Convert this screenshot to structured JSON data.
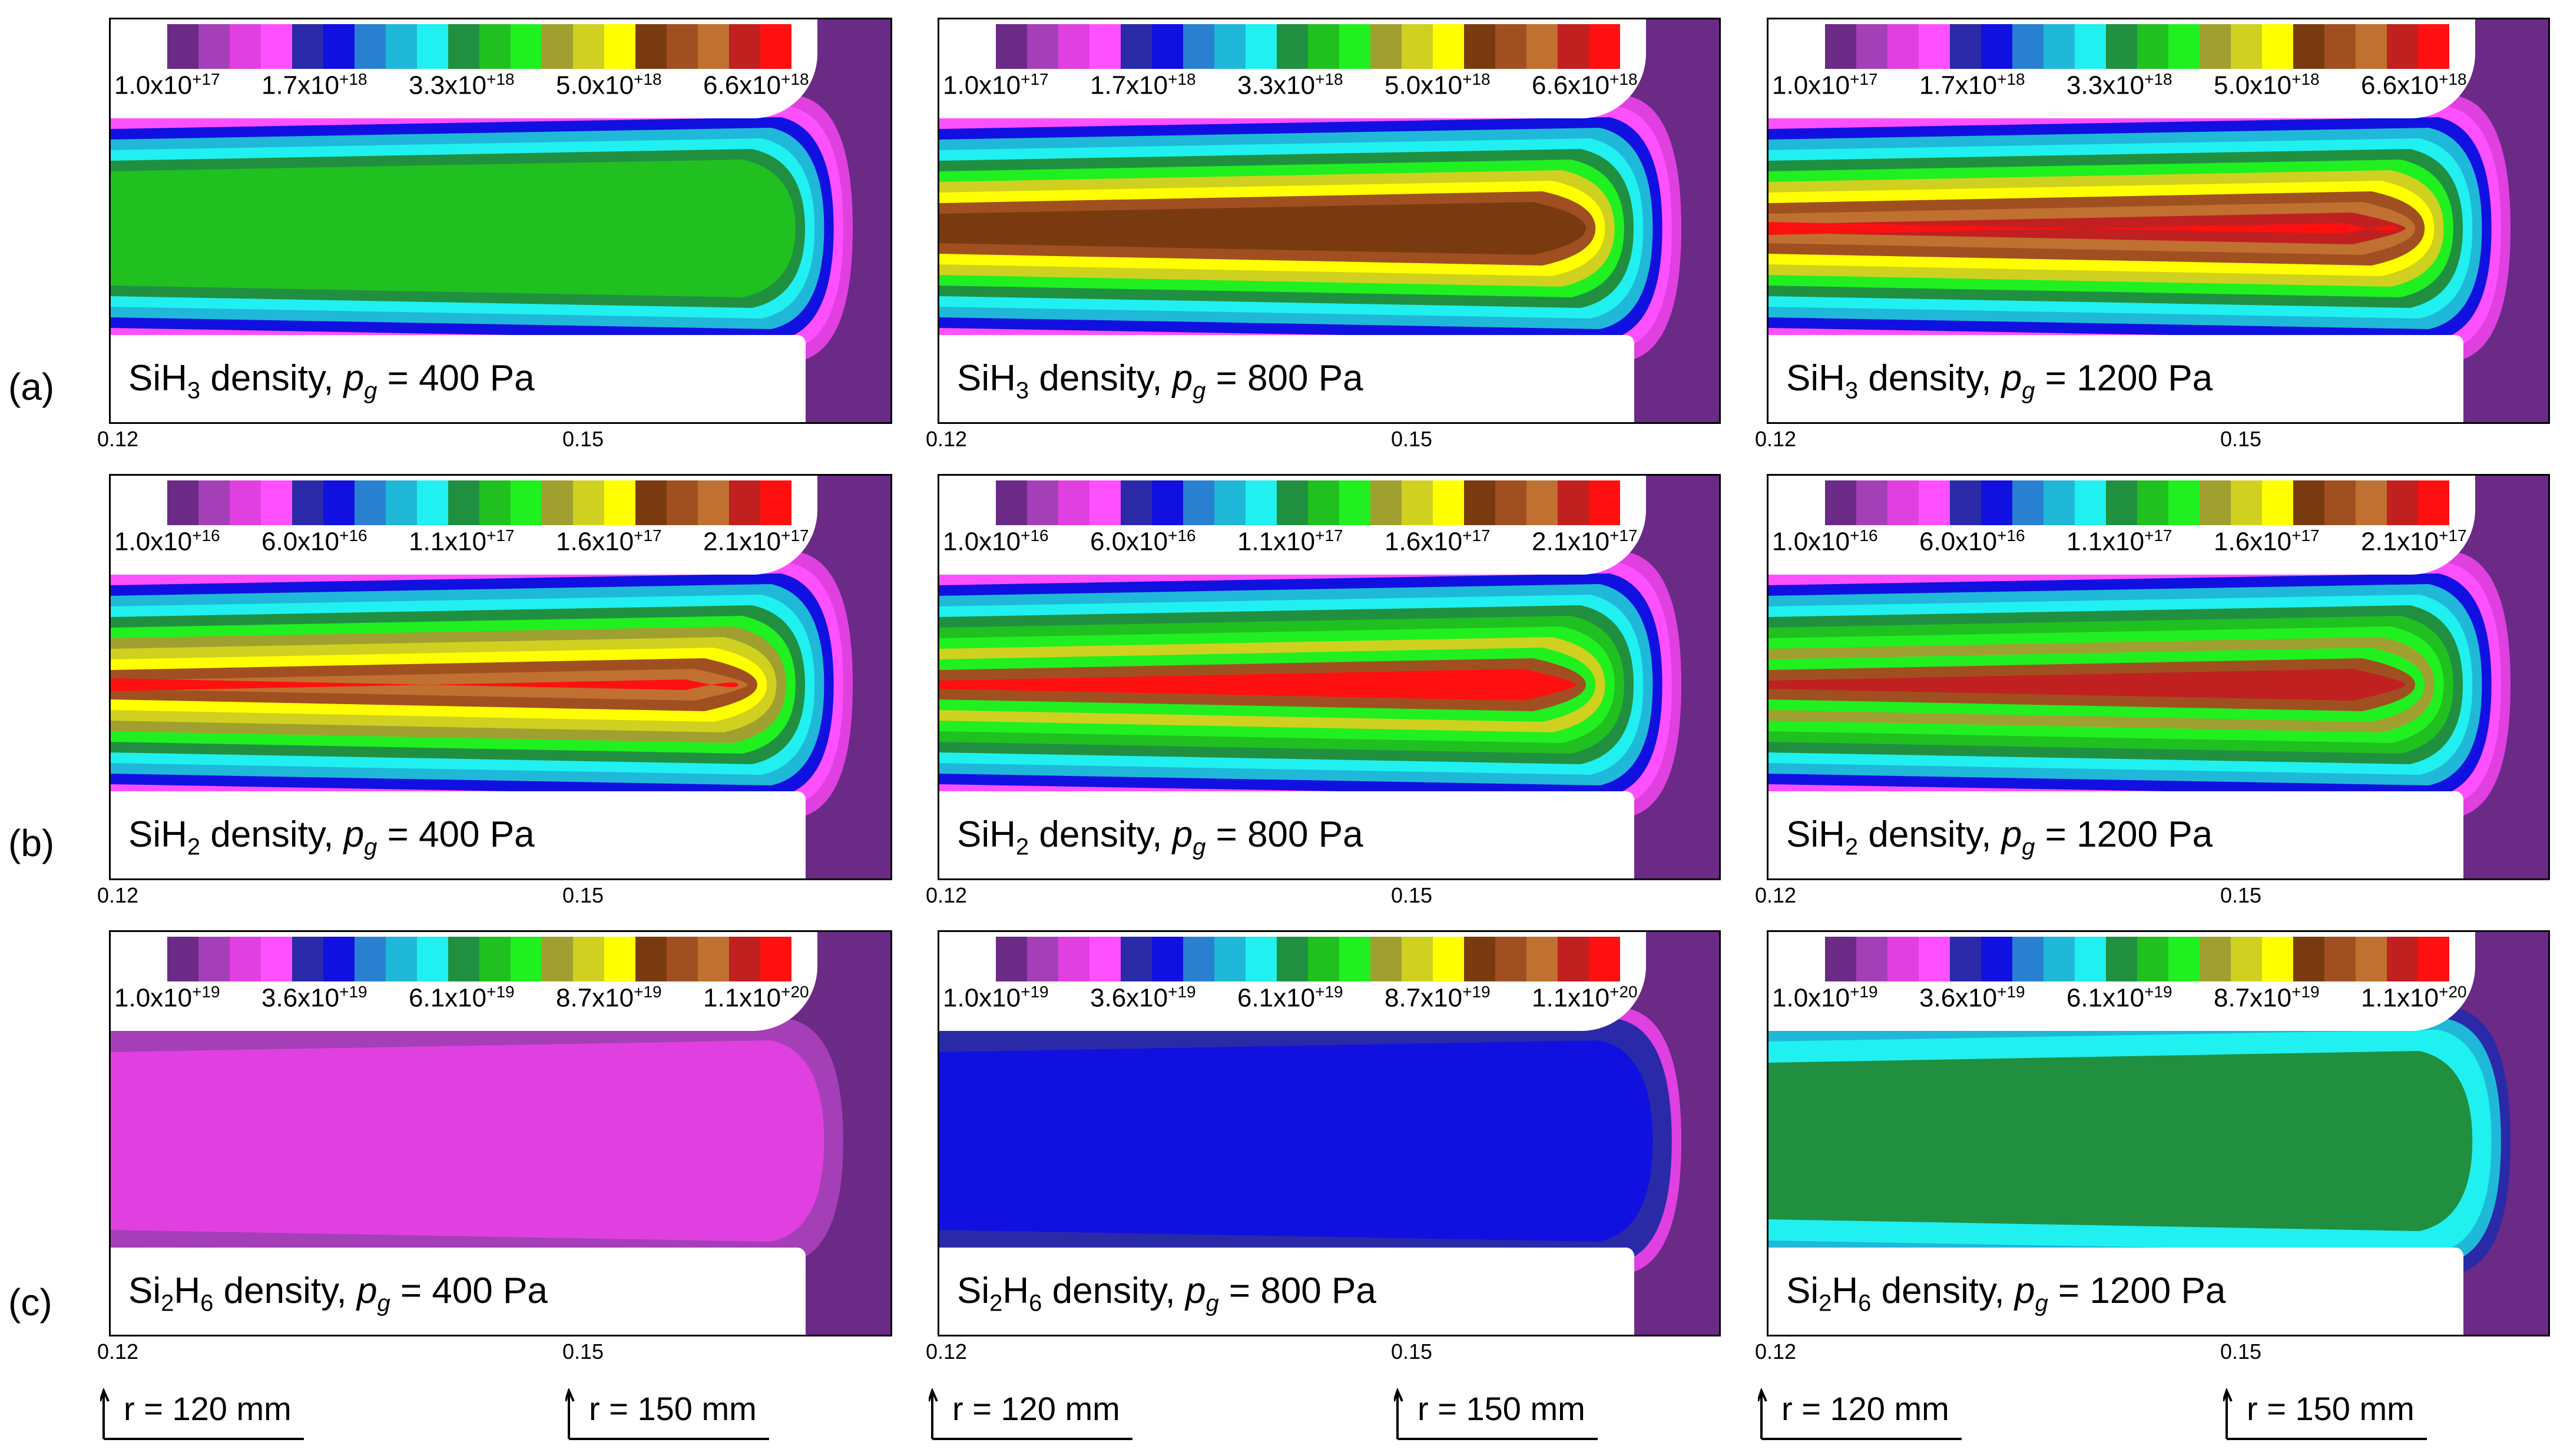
{
  "rows": [
    {
      "label": "(a)",
      "species_base": "SiH",
      "species_sub": "3",
      "species_tail": "",
      "ticks": [
        [
          "1.0x10",
          "+17"
        ],
        [
          "1.7x10",
          "+18"
        ],
        [
          "3.3x10",
          "+18"
        ],
        [
          "5.0x10",
          "+18"
        ],
        [
          "6.6x10",
          "+18"
        ]
      ]
    },
    {
      "label": "(b)",
      "species_base": "SiH",
      "species_sub": "2",
      "species_tail": "",
      "ticks": [
        [
          "1.0x10",
          "+16"
        ],
        [
          "6.0x10",
          "+16"
        ],
        [
          "1.1x10",
          "+17"
        ],
        [
          "1.6x10",
          "+17"
        ],
        [
          "2.1x10",
          "+17"
        ]
      ]
    },
    {
      "label": "(c)",
      "species_base": "Si",
      "species_sub": "2",
      "species_tail": "H",
      "species_sub2": "6",
      "ticks": [
        [
          "1.0x10",
          "+19"
        ],
        [
          "3.6x10",
          "+19"
        ],
        [
          "6.1x10",
          "+19"
        ],
        [
          "8.7x10",
          "+19"
        ],
        [
          "1.1x10",
          "+20"
        ]
      ]
    }
  ],
  "pressures": [
    "400 Pa",
    "800 Pa",
    "1200 Pa"
  ],
  "caption_middle": " density, ",
  "caption_pg_base": "p",
  "caption_pg_sub": "g",
  "caption_eq": " = ",
  "axis_ticks": [
    "0.12",
    "0.15"
  ],
  "r_markers": [
    "r = 120 mm",
    "r = 150 mm"
  ],
  "colormap": [
    "#6a2a86",
    "#a43fb8",
    "#e040e0",
    "#ff50ff",
    "#2a2aa8",
    "#1010e0",
    "#2a80d0",
    "#20b8d8",
    "#20f0f0",
    "#209040",
    "#20c020",
    "#20f020",
    "#a0a030",
    "#d0d020",
    "#ffff00",
    "#7a3a10",
    "#a05020",
    "#c07030",
    "#c02020",
    "#ff1010"
  ],
  "colors": {
    "background": "#ffffff",
    "frame": "#000000"
  }
}
